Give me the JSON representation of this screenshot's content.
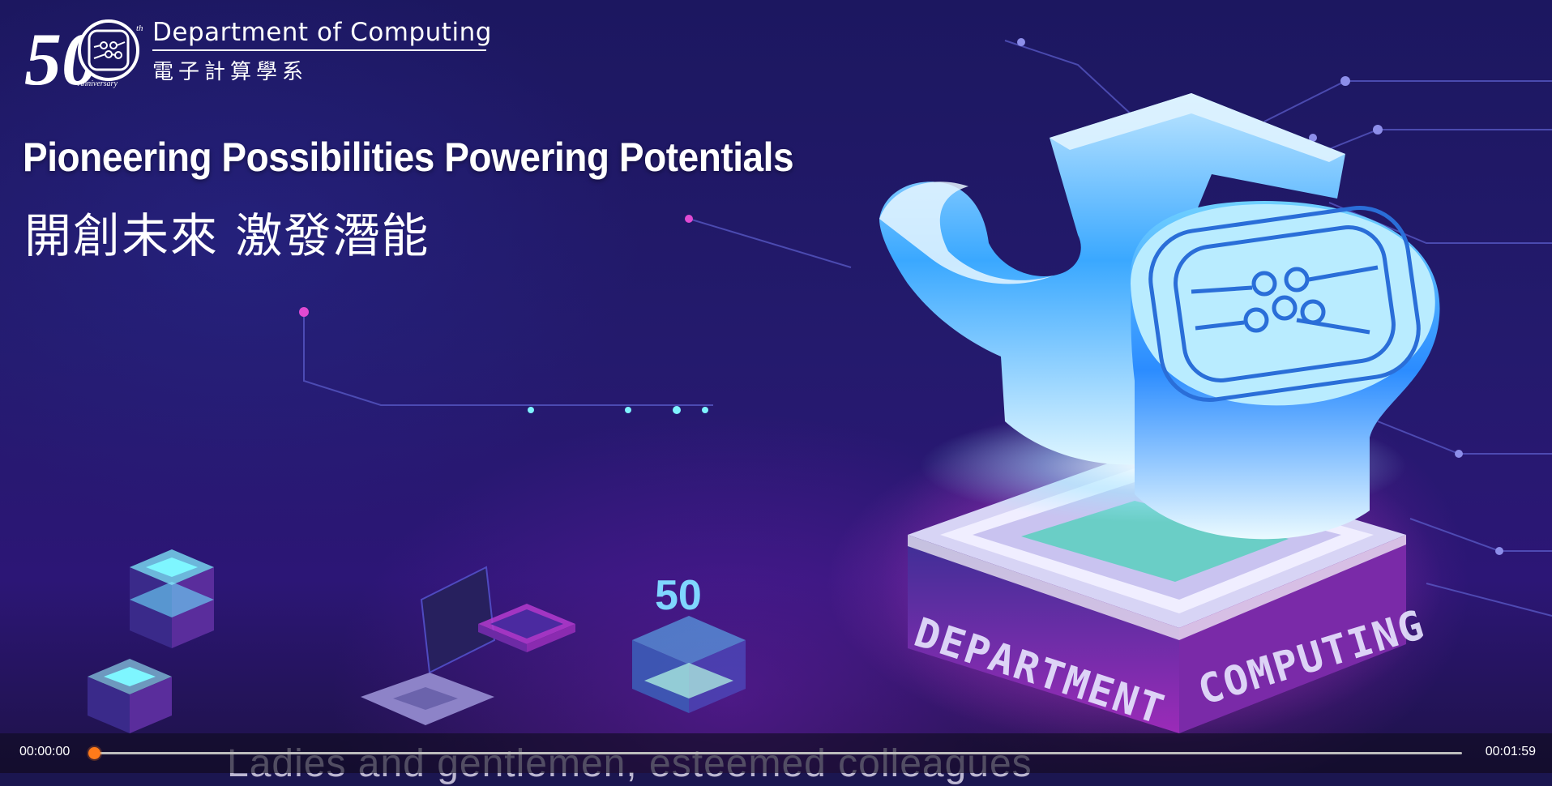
{
  "branding": {
    "logo_number": "50",
    "logo_sup": "th",
    "logo_caption": "Anniversary",
    "department_name": "Department of Computing",
    "department_name_zh": "電子計算學系"
  },
  "headline": {
    "en": "Pioneering Possibilities Powering Potentials",
    "zh": "開創未來 激發潛能"
  },
  "scene": {
    "badge_number": "50",
    "pedestal_text_left": "DEPARTMENT",
    "pedestal_text_right": "COMPUTING"
  },
  "subtitle": "Ladies and gentlemen, esteemed colleagues",
  "player": {
    "current_time": "00:00:00",
    "total_time": "00:01:59",
    "progress": 0.0
  },
  "colors": {
    "accent": "#ff7a1a",
    "background": "#1c1760",
    "cyan": "#3fb6ff",
    "magenta": "#c23cd0"
  }
}
